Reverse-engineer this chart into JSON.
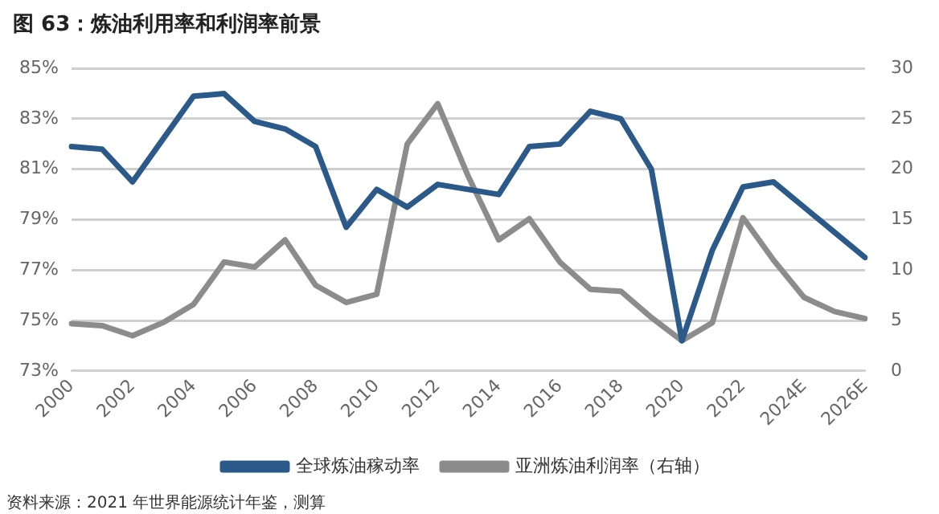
{
  "chart_data": {
    "type": "line",
    "title": "图 63：炼油利用率和利润率前景",
    "categories": [
      "2000",
      null,
      "2002",
      null,
      "2004",
      null,
      "2006",
      null,
      "2008",
      null,
      "2010",
      null,
      "2012",
      null,
      "2014",
      null,
      "2016",
      null,
      "2018",
      null,
      "2020",
      null,
      "2022",
      null,
      "2024E",
      null,
      "2026E"
    ],
    "series": [
      {
        "name": "全球炼油稼动率",
        "color": "#2b5a8a",
        "values": [
          81.9,
          81.8,
          80.5,
          82.2,
          83.9,
          84.0,
          82.9,
          82.6,
          81.9,
          78.7,
          80.2,
          79.5,
          80.4,
          80.2,
          80.0,
          81.9,
          82.0,
          83.3,
          83.0,
          81.0,
          74.2,
          77.8,
          80.3,
          80.5,
          79.5,
          78.5,
          77.5
        ]
      },
      {
        "name": "亚洲炼油利润率（右轴）",
        "color": "#8c8c8c",
        "axis": "y2",
        "values": [
          4.7,
          4.5,
          3.5,
          4.8,
          6.6,
          10.8,
          10.3,
          13.0,
          8.5,
          6.8,
          7.6,
          22.5,
          26.5,
          19.3,
          13.0,
          15.1,
          10.8,
          8.1,
          7.9,
          5.3,
          3.0,
          4.8,
          15.2,
          11.0,
          7.3,
          5.9,
          5.2
        ]
      }
    ],
    "ylim": [
      73,
      85
    ],
    "yticks": [
      {
        "value": 73,
        "label": "73%"
      },
      {
        "value": 75,
        "label": "75%"
      },
      {
        "value": 77,
        "label": "77%"
      },
      {
        "value": 79,
        "label": "79%"
      },
      {
        "value": 81,
        "label": "81%"
      },
      {
        "value": 83,
        "label": "83%"
      },
      {
        "value": 85,
        "label": "85%"
      }
    ],
    "y2lim": [
      0,
      30
    ],
    "y2ticks": [
      0,
      5,
      10,
      15,
      20,
      25,
      30
    ],
    "grid": "y",
    "legend": "bottom",
    "marker": "none",
    "line_style": "solid",
    "annotations": [
      "资料来源：2021 年世界能源统计年鉴，测算"
    ]
  }
}
